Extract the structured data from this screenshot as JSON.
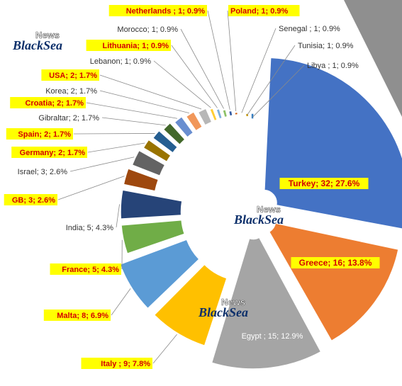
{
  "chart_data": {
    "type": "pie",
    "categories": [
      "Turkey",
      "Greece",
      "Egypt",
      "Italy",
      "Malta",
      "France",
      "India",
      "GB",
      "Israel",
      "Germany",
      "Spain",
      "Gibraltar",
      "Croatia",
      "Korea",
      "USA",
      "Lebanon",
      "Lithuania",
      "Morocco",
      "Netherlands",
      "Poland",
      "Senegal",
      "Tunisia",
      "Libya"
    ],
    "values": [
      32,
      16,
      15,
      9,
      8,
      5,
      5,
      3,
      3,
      2,
      2,
      2,
      2,
      2,
      2,
      1,
      1,
      1,
      1,
      1,
      1,
      1,
      1
    ],
    "labels": [
      "Turkey; 32; 27.6%",
      "Greece; 16; 13.8%",
      "Egypt ; 15; 12.9%",
      "Italy ; 9; 7.8%",
      "Malta; 8; 6.9%",
      "France; 5; 4.3%",
      "India; 5; 4.3%",
      "GB; 3; 2.6%",
      "Israel; 3; 2.6%",
      "Germany; 2; 1.7%",
      "Spain; 2; 1.7%",
      "Gibraltar; 2; 1.7%",
      "Croatia; 2; 1.7%",
      "Korea; 2; 1.7%",
      "USA; 2; 1.7%",
      "Lebanon; 1; 0.9%",
      "Lithuania; 1; 0.9%",
      "Morocco; 1; 0.9%",
      "Netherlands ; 1; 0.9%",
      "Poland; 1; 0.9%",
      "Senegal ; 1; 0.9%",
      "Tunisia; 1; 0.9%",
      "Libya ; 1; 0.9%"
    ],
    "highlighted": [
      true,
      true,
      false,
      true,
      true,
      true,
      false,
      true,
      false,
      true,
      true,
      false,
      true,
      false,
      true,
      false,
      true,
      false,
      true,
      true,
      false,
      false,
      false
    ],
    "colors": [
      "#4472c4",
      "#ed7d31",
      "#a5a5a5",
      "#ffc000",
      "#5b9bd5",
      "#70ad47",
      "#264478",
      "#9e480e",
      "#636363",
      "#997300",
      "#255e91",
      "#43682b",
      "#698ed0",
      "#f1975a",
      "#b7b7b7",
      "#ffcd33",
      "#7cafdd",
      "#8cc168",
      "#335aa1",
      "#d26012",
      "#848484",
      "#cc9a00",
      "#327dc2"
    ],
    "legend": "none",
    "title": ""
  },
  "watermark": {
    "news": "News",
    "brand": "BlackSea"
  }
}
